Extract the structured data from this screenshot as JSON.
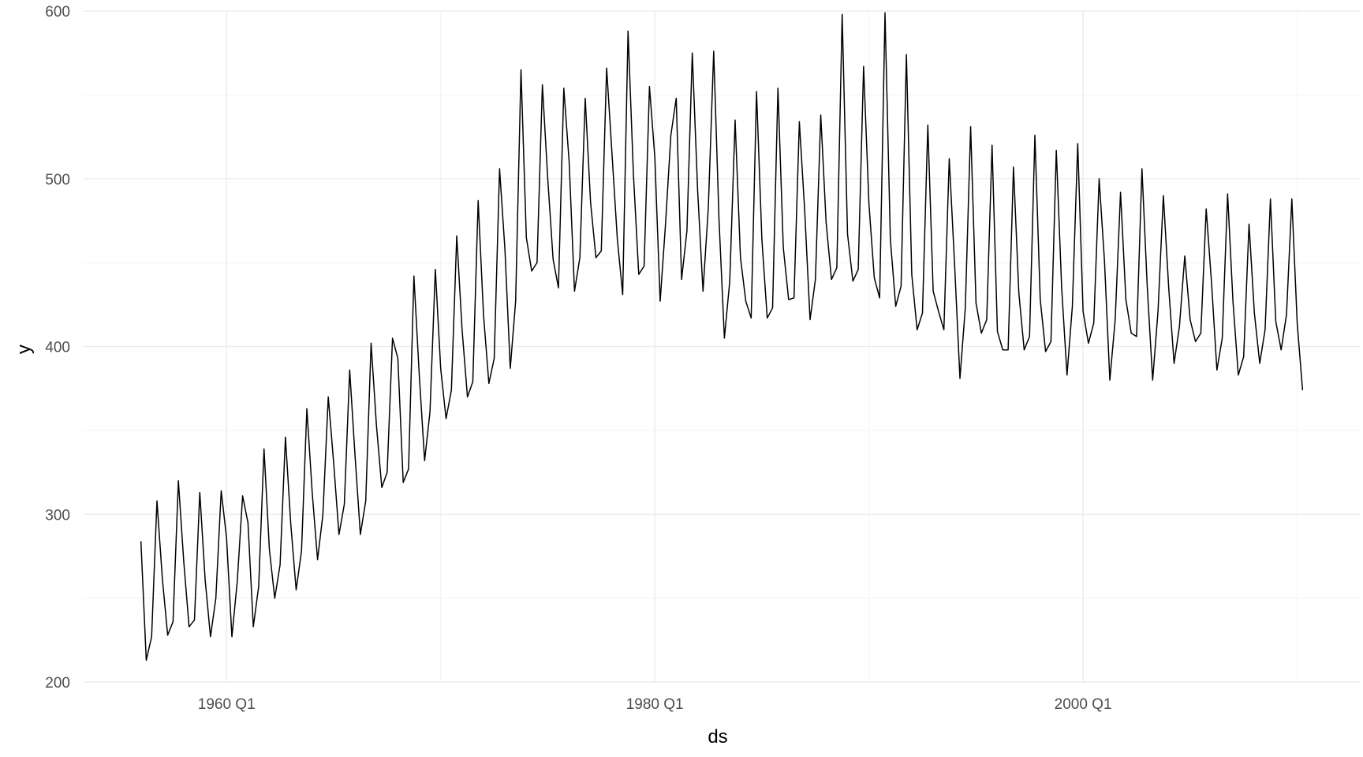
{
  "chart_data": {
    "type": "line",
    "title": "",
    "xlabel": "ds",
    "ylabel": "y",
    "x_start": "1956 Q1",
    "x_end": "2010 Q2",
    "x_major_ticks": [
      "1960 Q1",
      "1980 Q1",
      "2000 Q1"
    ],
    "x_minor_ticks": [
      "1970 Q1",
      "1990 Q1",
      "2010 Q1"
    ],
    "ylim": [
      200,
      600
    ],
    "y_major_ticks": [
      200,
      300,
      400,
      500,
      600
    ],
    "y_minor_ticks": [
      250,
      350,
      450,
      550
    ],
    "grid": true,
    "line_color": "#000000",
    "series": [
      {
        "values": [
          284,
          213,
          227,
          308,
          262,
          228,
          236,
          320,
          272,
          233,
          237,
          313,
          261,
          227,
          250,
          314,
          286,
          227,
          260,
          311,
          295,
          233,
          257,
          339,
          279,
          250,
          270,
          346,
          294,
          255,
          278,
          363,
          313,
          273,
          300,
          370,
          331,
          288,
          306,
          386,
          335,
          288,
          308,
          402,
          353,
          316,
          325,
          405,
          393,
          319,
          327,
          442,
          383,
          332,
          361,
          446,
          387,
          357,
          374,
          466,
          410,
          370,
          379,
          487,
          419,
          378,
          393,
          506,
          458,
          387,
          427,
          565,
          465,
          445,
          450,
          556,
          500,
          452,
          435,
          554,
          510,
          433,
          453,
          548,
          486,
          453,
          457,
          566,
          515,
          464,
          431,
          588,
          503,
          443,
          448,
          555,
          513,
          427,
          473,
          526,
          548,
          440,
          469,
          575,
          493,
          433,
          483,
          576,
          475,
          405,
          439,
          535,
          453,
          427,
          417,
          552,
          464,
          417,
          423,
          554,
          459,
          428,
          429,
          534,
          481,
          416,
          440,
          538,
          474,
          440,
          447,
          598,
          467,
          439,
          446,
          567,
          485,
          441,
          429,
          599,
          464,
          424,
          436,
          574,
          443,
          410,
          420,
          532,
          433,
          421,
          410,
          512,
          449,
          381,
          423,
          531,
          426,
          408,
          416,
          520,
          409,
          398,
          398,
          507,
          432,
          398,
          406,
          526,
          428,
          397,
          403,
          517,
          435,
          383,
          424,
          521,
          421,
          402,
          414,
          500,
          451,
          380,
          416,
          492,
          428,
          408,
          406,
          506,
          435,
          380,
          421,
          490,
          435,
          390,
          412,
          454,
          416,
          403,
          408,
          482,
          438,
          386,
          405,
          491,
          427,
          383,
          394,
          473,
          420,
          390,
          410,
          488,
          415,
          398,
          419,
          488,
          414,
          374
        ]
      }
    ]
  }
}
